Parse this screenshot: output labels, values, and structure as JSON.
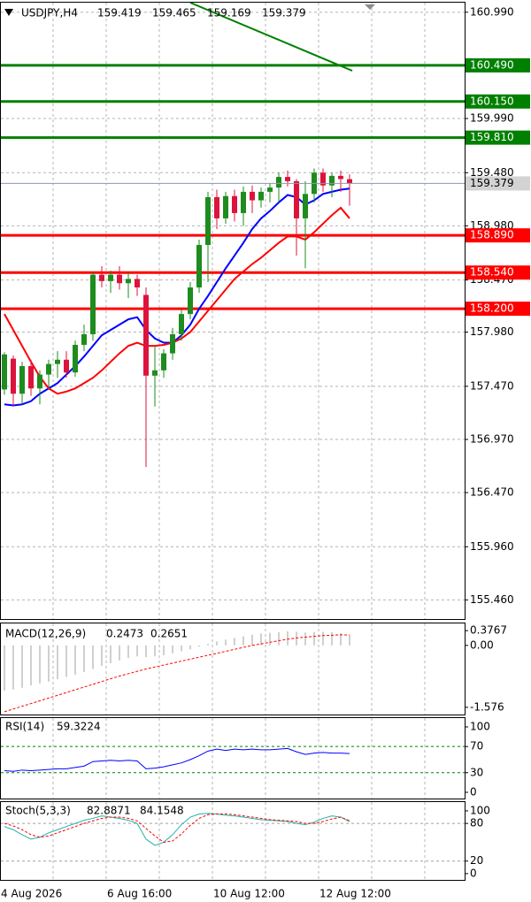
{
  "chart_data": [
    {
      "type": "candlestick",
      "title": "USDJPY,H4",
      "categories": [
        "4 Aug 2026",
        null,
        null,
        null,
        null,
        null,
        null,
        null,
        null,
        null,
        null,
        null,
        "6 Aug 16:00",
        null,
        null,
        null,
        null,
        null,
        null,
        null,
        null,
        null,
        null,
        null,
        "10 Aug 12:00",
        null,
        null,
        null,
        null,
        null,
        null,
        null,
        null,
        null,
        null,
        null,
        "12 Aug 12:00",
        null,
        null,
        null
      ],
      "open": [
        157.44,
        157.73,
        157.4,
        157.66,
        157.45,
        157.58,
        157.68,
        157.72,
        157.6,
        157.86,
        157.96,
        158.52,
        158.46,
        158.52,
        158.44,
        158.48,
        158.33,
        157.57,
        157.62,
        157.78,
        157.96,
        158.15,
        158.4,
        158.8,
        159.25,
        159.05,
        159.26,
        159.1,
        159.3,
        159.22,
        159.3,
        159.34,
        159.44,
        159.4,
        159.05,
        159.28,
        159.48,
        159.36,
        159.45,
        159.419
      ],
      "high": [
        157.79,
        157.76,
        157.7,
        157.72,
        157.62,
        157.72,
        157.8,
        157.8,
        157.9,
        158.05,
        158.55,
        158.6,
        158.56,
        158.6,
        158.54,
        158.52,
        158.4,
        157.85,
        157.82,
        158.02,
        158.2,
        158.45,
        158.85,
        159.3,
        159.32,
        159.3,
        159.32,
        159.35,
        159.36,
        159.34,
        159.38,
        159.48,
        159.5,
        159.42,
        159.4,
        159.52,
        159.52,
        159.48,
        159.5,
        159.465
      ],
      "low": [
        157.39,
        157.28,
        157.3,
        157.38,
        157.3,
        157.45,
        157.55,
        157.55,
        157.56,
        157.8,
        157.9,
        158.4,
        158.35,
        158.38,
        158.3,
        158.32,
        156.71,
        157.28,
        157.55,
        157.72,
        157.9,
        158.1,
        158.35,
        158.45,
        158.95,
        159.0,
        159.02,
        158.98,
        159.1,
        159.15,
        159.2,
        159.2,
        159.35,
        158.7,
        158.58,
        159.2,
        159.3,
        159.25,
        159.3,
        159.169
      ],
      "close": [
        157.77,
        157.4,
        157.66,
        157.45,
        157.58,
        157.68,
        157.72,
        157.6,
        157.86,
        157.96,
        158.52,
        158.46,
        158.52,
        158.44,
        158.48,
        158.4,
        157.57,
        157.62,
        157.78,
        157.96,
        158.15,
        158.4,
        158.8,
        159.25,
        159.05,
        159.26,
        159.1,
        159.3,
        159.22,
        159.3,
        159.34,
        159.44,
        159.4,
        159.05,
        159.28,
        159.48,
        159.36,
        159.45,
        159.42,
        159.379
      ],
      "up_color": "#1e8c1e",
      "down_color": "#dc143c",
      "series": [
        {
          "color": "#0000ff",
          "values": [
            157.3,
            157.29,
            157.3,
            157.33,
            157.4,
            157.45,
            157.5,
            157.58,
            157.66,
            157.75,
            157.85,
            157.95,
            158.0,
            158.05,
            158.1,
            158.12,
            158.0,
            157.92,
            157.88,
            157.88,
            157.95,
            158.05,
            158.2,
            158.32,
            158.45,
            158.58,
            158.7,
            158.82,
            158.95,
            159.05,
            159.12,
            159.2,
            159.27,
            159.25,
            159.18,
            159.22,
            159.28,
            159.3,
            159.32,
            159.33
          ]
        },
        {
          "color": "#ff0000",
          "values": [
            158.15,
            158.0,
            157.85,
            157.7,
            157.56,
            157.45,
            157.4,
            157.42,
            157.45,
            157.5,
            157.55,
            157.62,
            157.7,
            157.78,
            157.85,
            157.88,
            157.85,
            157.85,
            157.86,
            157.88,
            157.92,
            157.98,
            158.08,
            158.18,
            158.28,
            158.38,
            158.48,
            158.55,
            158.62,
            158.68,
            158.75,
            158.82,
            158.88,
            158.88,
            158.85,
            158.92,
            159.0,
            159.08,
            159.15,
            159.05
          ]
        }
      ],
      "levels": [
        {
          "value": {
            "value": 160.49,
            "label": "160.490"
          },
          "color": "#008000"
        },
        {
          "value": {
            "value": 160.15,
            "label": "160.150"
          },
          "color": "#008000"
        },
        {
          "value": {
            "value": 159.81,
            "label": "159.810"
          },
          "color": "#008000"
        },
        {
          "value": {
            "value": 158.89,
            "label": "158.890"
          },
          "color": "#ff0000"
        },
        {
          "value": {
            "value": 158.54,
            "label": "158.540"
          },
          "color": "#ff0000"
        },
        {
          "value": {
            "value": 158.2,
            "label": "158.200"
          },
          "color": "#ff0000"
        }
      ],
      "ylim": [
        155.28,
        161.08
      ],
      "yticks": [
        {
          "value": 160.99,
          "label": "160.990"
        },
        {
          "value": 160.49,
          "label": "160.490"
        },
        {
          "value": 159.99,
          "label": "159.990"
        },
        {
          "value": 159.48,
          "label": "159.480"
        },
        {
          "value": 158.98,
          "label": "158.980"
        },
        {
          "value": 158.47,
          "label": "158.470"
        },
        {
          "value": 157.98,
          "label": "157.980"
        },
        {
          "value": 157.47,
          "label": "157.470"
        },
        {
          "value": 156.97,
          "label": "156.970"
        },
        {
          "value": 156.47,
          "label": "156.470"
        },
        {
          "value": 155.96,
          "label": "155.960"
        },
        {
          "value": 155.46,
          "label": "155.460"
        }
      ],
      "grid": true
    },
    {
      "type": "macd",
      "title": "MACD(12,26,9)",
      "series": [
        {
          "color": "#a0a0a0",
          "values": [
            -1.15,
            -1.12,
            -1.08,
            -1.02,
            -0.97,
            -0.92,
            -0.86,
            -0.8,
            -0.74,
            -0.68,
            -0.6,
            -0.52,
            -0.45,
            -0.38,
            -0.32,
            -0.28,
            -0.3,
            -0.28,
            -0.25,
            -0.2,
            -0.15,
            -0.1,
            -0.03,
            0.04,
            0.1,
            0.15,
            0.19,
            0.23,
            0.27,
            0.3,
            0.32,
            0.34,
            0.36,
            0.35,
            0.33,
            0.34,
            0.35,
            0.34,
            0.31,
            0.2473
          ]
        },
        {
          "color": "#ff0000",
          "values": [
            -1.69,
            -1.62,
            -1.55,
            -1.48,
            -1.41,
            -1.34,
            -1.27,
            -1.2,
            -1.13,
            -1.06,
            -0.99,
            -0.92,
            -0.85,
            -0.78,
            -0.72,
            -0.66,
            -0.6,
            -0.55,
            -0.5,
            -0.45,
            -0.4,
            -0.35,
            -0.3,
            -0.25,
            -0.2,
            -0.15,
            -0.1,
            -0.05,
            0.0,
            0.04,
            0.08,
            0.12,
            0.16,
            0.19,
            0.21,
            0.23,
            0.25,
            0.26,
            0.27,
            0.2651
          ]
        }
      ],
      "ylim": [
        -1.76,
        0.56
      ],
      "yticks": [
        0.3767,
        {
          "value": 0,
          "label": "0.00"
        },
        -1.576
      ]
    },
    {
      "type": "oscillator",
      "title": "RSI(14)",
      "series": [
        {
          "color": "#0000ff",
          "values": [
            33,
            32,
            34,
            33,
            34,
            35,
            36,
            36,
            38,
            40,
            47,
            48,
            49,
            48,
            49,
            48,
            36,
            37,
            39,
            42,
            45,
            50,
            56,
            63,
            66,
            64,
            66,
            65,
            66,
            65,
            65,
            66,
            67,
            62,
            58,
            60,
            61,
            60,
            60,
            59.3224
          ]
        }
      ],
      "levels": [
        70,
        30
      ],
      "level_color": "#008000",
      "ylim": [
        -9.5,
        113.5
      ],
      "yticks": [
        100,
        70,
        30,
        0
      ]
    },
    {
      "type": "oscillator",
      "title": "Stoch(5,3,3)",
      "series": [
        {
          "color": "#20b2aa",
          "values": [
            75,
            70,
            62,
            55,
            58,
            65,
            70,
            75,
            80,
            85,
            88,
            92,
            90,
            88,
            85,
            80,
            55,
            45,
            50,
            62,
            78,
            90,
            95,
            96,
            95,
            93,
            92,
            90,
            88,
            86,
            85,
            84,
            83,
            80,
            78,
            82,
            88,
            92,
            90,
            82.8871
          ]
        },
        {
          "color": "#ff0000",
          "dashed": true,
          "values": [
            80,
            76,
            70,
            62,
            58,
            60,
            65,
            70,
            75,
            80,
            84,
            88,
            90,
            90,
            88,
            84,
            72,
            60,
            50,
            52,
            63,
            77,
            88,
            94,
            95,
            95,
            94,
            92,
            90,
            88,
            86,
            85,
            84,
            83,
            80,
            80,
            83,
            87,
            90,
            84.1548
          ]
        }
      ],
      "levels": [
        80,
        20
      ],
      "level_color": "#a0a0a0",
      "ylim": [
        -10,
        114
      ],
      "yticks": [
        100,
        80,
        20,
        0
      ]
    }
  ]
}
